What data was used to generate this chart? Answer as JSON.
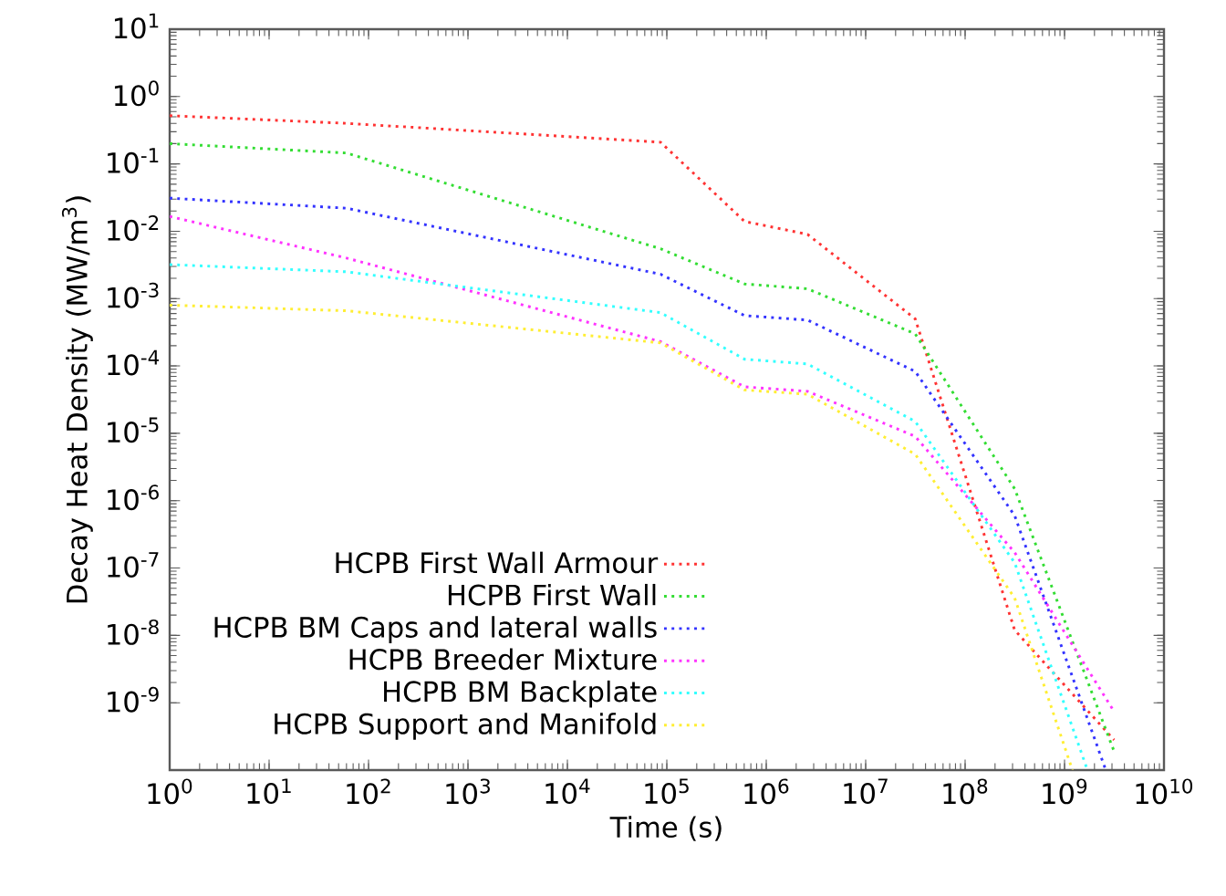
{
  "chart_data": {
    "type": "line",
    "xlabel": "Time (s)",
    "ylabel": "Decay Heat Density (MW/m$^{3}$)",
    "log": "xy",
    "legend": "bottom left",
    "marker": "none",
    "line_style": "dotted",
    "grid": false,
    "xlim": [
      1,
      10000000000.0
    ],
    "ylim": [
      1e-10,
      10
    ],
    "xticks": [
      {
        "value": 1,
        "label": "10$^{0}$"
      },
      {
        "value": 10,
        "label": "10$^{1}$"
      },
      {
        "value": 100,
        "label": "10$^{2}$"
      },
      {
        "value": 1000,
        "label": "10$^{3}$"
      },
      {
        "value": 10000.0,
        "label": "10$^{4}$"
      },
      {
        "value": 100000.0,
        "label": "10$^{5}$"
      },
      {
        "value": 1000000.0,
        "label": "10$^{6}$"
      },
      {
        "value": 10000000.0,
        "label": "10$^{7}$"
      },
      {
        "value": 100000000.0,
        "label": "10$^{8}$"
      },
      {
        "value": 1000000000.0,
        "label": "10$^{9}$"
      },
      {
        "value": 10000000000.0,
        "label": "10$^{10}$"
      }
    ],
    "yticks": [
      {
        "value": 1e-09,
        "label": "10$^{-9}$"
      },
      {
        "value": 1e-08,
        "label": "10$^{-8}$"
      },
      {
        "value": 1e-07,
        "label": "10$^{-7}$"
      },
      {
        "value": 1e-06,
        "label": "10$^{-6}$"
      },
      {
        "value": 1e-05,
        "label": "10$^{-5}$"
      },
      {
        "value": 0.0001,
        "label": "10$^{-4}$"
      },
      {
        "value": 0.001,
        "label": "10$^{-3}$"
      },
      {
        "value": 0.01,
        "label": "10$^{-2}$"
      },
      {
        "value": 0.1,
        "label": "10$^{-1}$"
      },
      {
        "value": 1,
        "label": "10$^{0}$"
      },
      {
        "value": 10,
        "label": "10$^{1}$"
      }
    ],
    "series": [
      {
        "name": "HCPB First Wall Armour",
        "color": "#ff3333",
        "x": [
          1,
          60,
          86400,
          604800,
          2600000.0,
          31500000.0,
          315000000.0,
          3150000000.0
        ],
        "values": [
          0.52,
          0.4,
          0.21,
          0.014,
          0.009,
          0.0005,
          1.2e-08,
          2.8e-10
        ]
      },
      {
        "name": "HCPB First Wall",
        "color": "#33dd33",
        "x": [
          1,
          60,
          86400,
          604800,
          2600000.0,
          31500000.0,
          315000000.0,
          3150000000.0
        ],
        "values": [
          0.2,
          0.145,
          0.0055,
          0.00165,
          0.0014,
          0.0003,
          1.5e-06,
          1.9e-10
        ]
      },
      {
        "name": "HCPB BM Caps and lateral walls",
        "color": "#3333ff",
        "x": [
          1,
          60,
          86400,
          604800,
          2600000.0,
          31500000.0,
          315000000.0,
          2600000000.0
        ],
        "values": [
          0.031,
          0.022,
          0.0023,
          0.00056,
          0.00048,
          8.3e-05,
          6e-07,
          1e-10
        ]
      },
      {
        "name": "HCPB Breeder Mixture",
        "color": "#ff33ff",
        "x": [
          1,
          60,
          86400,
          604800,
          2600000.0,
          31500000.0,
          315000000.0,
          3150000000.0
        ],
        "values": [
          0.0166,
          0.004,
          0.00023,
          4.9e-05,
          4.2e-05,
          9e-06,
          1.7e-07,
          7.4e-10
        ]
      },
      {
        "name": "HCPB BM Backplate",
        "color": "#33ffff",
        "x": [
          1,
          60,
          86400,
          604800,
          2600000.0,
          31500000.0,
          315000000.0,
          1700000000.0
        ],
        "values": [
          0.0032,
          0.0025,
          0.00062,
          0.000126,
          0.000107,
          1.5e-05,
          1.2e-07,
          1e-10
        ]
      },
      {
        "name": "HCPB Support and Manifold",
        "color": "#ffee33",
        "x": [
          1,
          60,
          86400,
          604800,
          2600000.0,
          31500000.0,
          315000000.0,
          1200000000.0
        ],
        "values": [
          0.0008,
          0.00066,
          0.00022,
          4.4e-05,
          3.8e-05,
          4.9e-06,
          3.6e-08,
          1e-10
        ]
      }
    ]
  }
}
